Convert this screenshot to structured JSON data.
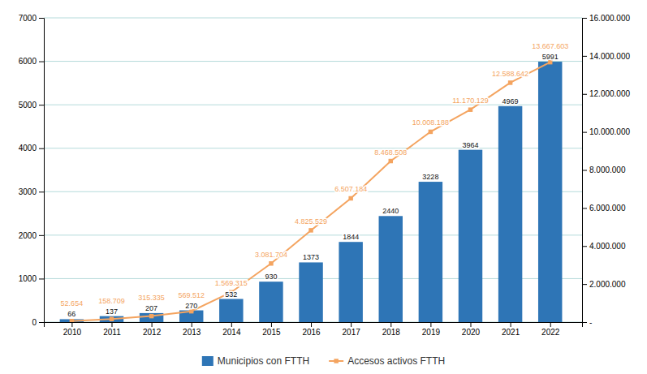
{
  "chart_data": {
    "type": "bar",
    "x": [
      2010,
      2011,
      2012,
      2013,
      2014,
      2015,
      2016,
      2017,
      2018,
      2019,
      2020,
      2021,
      2022
    ],
    "xlim": [
      2009.3,
      2022.8
    ],
    "xticks": [
      2010,
      2011,
      2012,
      2013,
      2014,
      2015,
      2016,
      2017,
      2018,
      2019,
      2020,
      2021,
      2022
    ],
    "ylim": [
      0,
      7000
    ],
    "yticks": [
      0,
      1000,
      2000,
      3000,
      4000,
      5000,
      6000,
      7000
    ],
    "y2lim": [
      0,
      16000000
    ],
    "y2ticks": [
      {
        "value": 0,
        "label": "-"
      },
      {
        "value": 2000000,
        "label": "2.000.000"
      },
      {
        "value": 4000000,
        "label": "4.000.000"
      },
      {
        "value": 6000000,
        "label": "6.000.000"
      },
      {
        "value": 8000000,
        "label": "8.000.000"
      },
      {
        "value": 10000000,
        "label": "10.000.000"
      },
      {
        "value": 12000000,
        "label": "12.000.000"
      },
      {
        "value": 14000000,
        "label": "14.000.000"
      },
      {
        "value": 16000000,
        "label": "16.000.000"
      }
    ],
    "grid": true,
    "legend": "bottom",
    "data_labels": true,
    "series": [
      {
        "name": "Municipios con FTTH",
        "type": "bar",
        "color": "#2e75b6",
        "values": [
          66,
          137,
          207,
          270,
          532,
          930,
          1373,
          1844,
          2440,
          3228,
          3964,
          4969,
          5991
        ]
      },
      {
        "name": "Accesos activos FTTH",
        "type": "line",
        "axis": "y2",
        "color": "#f4a460",
        "marker": "square",
        "values": [
          52654,
          158709,
          315335,
          569512,
          1569315,
          3081704,
          4825529,
          6507184,
          8468508,
          10008188,
          11170129,
          12588642,
          13667603
        ],
        "value_labels": [
          "52.654",
          "158.709",
          "315.335",
          "569.512",
          "1.569.315",
          "3.081.704",
          "4.825.529",
          "6.507.184",
          "8.468.508",
          "10.008.188",
          "11.170.129",
          "12.588.642",
          "13.667.603"
        ]
      }
    ]
  }
}
